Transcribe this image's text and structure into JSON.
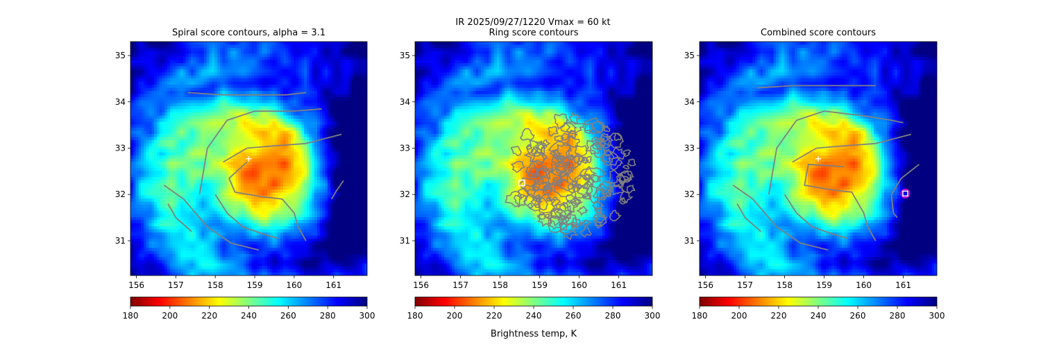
{
  "figure": {
    "suptitle_line1": "IR  2025/09/27/1220    Vmax = 60 kt",
    "colorbar_label": "Brightness temp, K"
  },
  "colormap": {
    "name": "jet_reversed",
    "stops": [
      "#800000",
      "#ff0000",
      "#ff8000",
      "#ffff00",
      "#80ff80",
      "#00ffff",
      "#0080ff",
      "#0000ff",
      "#000080"
    ]
  },
  "colors": {
    "contour": "#808080",
    "first_guess_marker": "#ffffff",
    "best_fix_marker": "#ffffff",
    "best_fix_ring": "#cc00cc"
  },
  "chart_data": [
    {
      "type": "heatmap",
      "title": "Spiral score contours, alpha =  3.1",
      "xlim": [
        155.85,
        161.85
      ],
      "ylim": [
        30.25,
        35.3
      ],
      "xticks": [
        156,
        157,
        158,
        159,
        160,
        161
      ],
      "yticks": [
        31,
        32,
        33,
        34,
        35
      ],
      "colorbar": {
        "range": [
          180,
          300
        ],
        "ticks": [
          180,
          200,
          220,
          240,
          260,
          280,
          300
        ]
      },
      "storm_center": {
        "lon": 159.2,
        "lat": 32.45,
        "eye_min_K": 205
      },
      "marker": {
        "kind": "plus",
        "lon": 158.85,
        "lat": 32.77
      },
      "contours": [
        [
          [
            157.3,
            34.2
          ],
          [
            158.2,
            34.15
          ],
          [
            159.0,
            34.15
          ],
          [
            159.8,
            34.15
          ],
          [
            160.3,
            34.2
          ]
        ],
        [
          [
            157.6,
            32.0
          ],
          [
            157.8,
            33.0
          ],
          [
            158.3,
            33.6
          ],
          [
            159.0,
            33.8
          ],
          [
            160.0,
            33.8
          ],
          [
            160.7,
            33.85
          ]
        ],
        [
          [
            158.2,
            32.7
          ],
          [
            158.8,
            33.0
          ],
          [
            159.5,
            33.05
          ],
          [
            160.3,
            33.1
          ],
          [
            161.2,
            33.3
          ]
        ],
        [
          [
            158.8,
            32.7
          ],
          [
            158.35,
            32.35
          ],
          [
            158.5,
            32.05
          ],
          [
            159.2,
            31.95
          ],
          [
            159.7,
            31.9
          ],
          [
            160.0,
            31.6
          ],
          [
            160.1,
            31.3
          ],
          [
            160.3,
            31.0
          ]
        ],
        [
          [
            156.7,
            32.2
          ],
          [
            157.2,
            31.9
          ],
          [
            157.8,
            31.3
          ],
          [
            158.4,
            30.95
          ],
          [
            159.1,
            30.8
          ]
        ],
        [
          [
            156.8,
            31.8
          ],
          [
            157.0,
            31.5
          ],
          [
            157.4,
            31.2
          ]
        ],
        [
          [
            158.0,
            32.0
          ],
          [
            158.3,
            31.6
          ],
          [
            158.7,
            31.3
          ],
          [
            159.2,
            31.15
          ],
          [
            159.6,
            31.05
          ]
        ],
        [
          [
            161.25,
            32.3
          ],
          [
            161.05,
            32.05
          ],
          [
            160.95,
            31.9
          ]
        ]
      ]
    },
    {
      "type": "heatmap",
      "title": "Ring score contours",
      "xlim": [
        155.85,
        161.85
      ],
      "ylim": [
        30.25,
        35.3
      ],
      "xticks": [
        156,
        157,
        158,
        159,
        160,
        161
      ],
      "yticks": [
        31,
        32,
        33,
        34,
        35
      ],
      "colorbar": {
        "range": [
          180,
          300
        ],
        "ticks": [
          180,
          200,
          220,
          240,
          260,
          280,
          300
        ]
      },
      "storm_center": {
        "lon": 159.2,
        "lat": 32.45,
        "eye_min_K": 205
      },
      "marker": {
        "kind": "square",
        "lon": 158.55,
        "lat": 32.25
      },
      "ring_region": {
        "lon": 159.8,
        "lat": 32.4,
        "radius_lon": 1.6,
        "radius_lat": 1.25
      },
      "contours": []
    },
    {
      "type": "heatmap",
      "title": "Combined score contours",
      "xlim": [
        155.85,
        161.85
      ],
      "ylim": [
        30.25,
        35.3
      ],
      "xticks": [
        156,
        157,
        158,
        159,
        160,
        161
      ],
      "yticks": [
        31,
        32,
        33,
        34,
        35
      ],
      "colorbar": {
        "range": [
          180,
          300
        ],
        "ticks": [
          180,
          200,
          220,
          240,
          260,
          280,
          300
        ]
      },
      "storm_center": {
        "lon": 159.2,
        "lat": 32.45,
        "eye_min_K": 205
      },
      "marker": {
        "kind": "plus",
        "lon": 158.85,
        "lat": 32.77
      },
      "best_fix": {
        "lon": 161.05,
        "lat": 32.02
      },
      "contours": [
        [
          [
            157.3,
            34.3
          ],
          [
            158.2,
            34.35
          ],
          [
            159.0,
            34.35
          ],
          [
            159.8,
            34.35
          ],
          [
            160.3,
            34.35
          ]
        ],
        [
          [
            157.6,
            32.0
          ],
          [
            157.8,
            33.0
          ],
          [
            158.3,
            33.6
          ],
          [
            159.0,
            33.8
          ],
          [
            160.0,
            33.7
          ],
          [
            160.7,
            33.6
          ],
          [
            161.0,
            33.55
          ]
        ],
        [
          [
            158.2,
            32.7
          ],
          [
            158.8,
            33.0
          ],
          [
            159.5,
            33.05
          ],
          [
            160.3,
            33.1
          ],
          [
            161.2,
            33.3
          ]
        ],
        [
          [
            159.5,
            32.6
          ],
          [
            158.6,
            32.65
          ],
          [
            158.5,
            32.2
          ],
          [
            159.2,
            32.1
          ],
          [
            159.7,
            32.05
          ],
          [
            160.0,
            31.6
          ],
          [
            160.1,
            31.3
          ],
          [
            160.3,
            31.0
          ]
        ],
        [
          [
            156.7,
            32.2
          ],
          [
            157.2,
            31.9
          ],
          [
            157.8,
            31.3
          ],
          [
            158.4,
            30.95
          ],
          [
            159.1,
            30.8
          ]
        ],
        [
          [
            156.8,
            31.8
          ],
          [
            157.0,
            31.5
          ],
          [
            157.4,
            31.2
          ]
        ],
        [
          [
            158.0,
            32.0
          ],
          [
            158.3,
            31.6
          ],
          [
            158.7,
            31.3
          ],
          [
            159.2,
            31.15
          ],
          [
            159.6,
            31.05
          ]
        ],
        [
          [
            161.4,
            32.65
          ],
          [
            160.95,
            32.35
          ],
          [
            160.7,
            32.0
          ],
          [
            160.75,
            31.6
          ],
          [
            160.85,
            31.5
          ]
        ]
      ]
    }
  ]
}
